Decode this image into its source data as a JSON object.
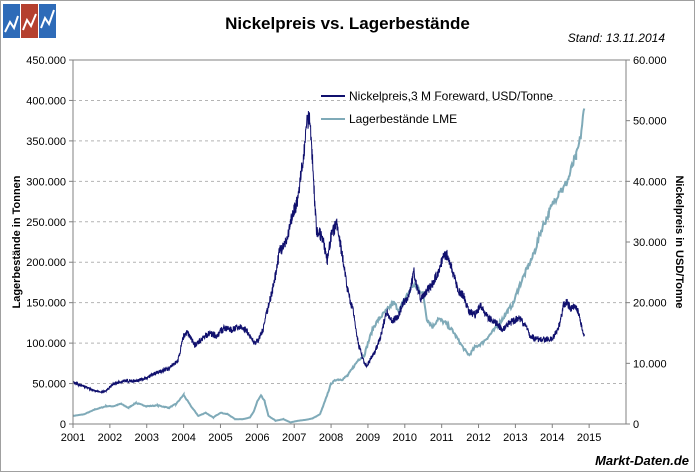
{
  "header": {
    "title": "Nickelpreis vs. Lagerbestände",
    "stand": "Stand: 13.11.2014",
    "footer": "Markt-Daten.de"
  },
  "colors": {
    "nickel": "#10106e",
    "stock": "#7faab8",
    "grid": "#b4b4b4"
  },
  "chart_data": {
    "type": "line",
    "title": "Nickelpreis vs. Lagerbestände",
    "x_ticks": [
      "2001",
      "2002",
      "2003",
      "2004",
      "2005",
      "2006",
      "2007",
      "2008",
      "2009",
      "2010",
      "2011",
      "2012",
      "2013",
      "2014",
      "2015"
    ],
    "xlim": [
      2001,
      2016
    ],
    "y_left": {
      "label": "Lagerbestände in Tonnen",
      "lim": [
        0,
        450000
      ],
      "ticks": [
        "0",
        "50.000",
        "100.000",
        "150.000",
        "200.000",
        "250.000",
        "300.000",
        "350.000",
        "400.000",
        "450.000"
      ]
    },
    "y_right": {
      "label": "Nickelpreis in USD/Tonne",
      "lim": [
        0,
        60000
      ],
      "ticks": [
        "0",
        "10.000",
        "20.000",
        "30.000",
        "40.000",
        "50.000",
        "60.000"
      ]
    },
    "legend": [
      "Nickelpreis,3 M Foreward, USD/Tonne",
      "Lagerbestände LME"
    ],
    "series": [
      {
        "name": "Nickelpreis,3 M Foreward, USD/Tonne",
        "axis": "right",
        "x": [
          2001.0,
          2001.3,
          2001.6,
          2001.85,
          2002.1,
          2002.4,
          2002.7,
          2003.0,
          2003.3,
          2003.6,
          2003.85,
          2004.0,
          2004.1,
          2004.3,
          2004.5,
          2004.7,
          2004.9,
          2005.1,
          2005.3,
          2005.5,
          2005.7,
          2005.9,
          2006.0,
          2006.15,
          2006.3,
          2006.45,
          2006.6,
          2006.8,
          2006.95,
          2007.1,
          2007.25,
          2007.35,
          2007.42,
          2007.5,
          2007.6,
          2007.75,
          2007.9,
          2008.0,
          2008.15,
          2008.3,
          2008.45,
          2008.6,
          2008.75,
          2008.9,
          2008.97,
          2009.05,
          2009.2,
          2009.35,
          2009.5,
          2009.65,
          2009.8,
          2009.95,
          2010.1,
          2010.25,
          2010.35,
          2010.45,
          2010.6,
          2010.75,
          2010.9,
          2011.05,
          2011.15,
          2011.3,
          2011.45,
          2011.6,
          2011.75,
          2011.9,
          2012.05,
          2012.2,
          2012.35,
          2012.5,
          2012.65,
          2012.8,
          2012.95,
          2013.1,
          2013.25,
          2013.4,
          2013.55,
          2013.7,
          2013.85,
          2014.0,
          2014.1,
          2014.2,
          2014.3,
          2014.4,
          2014.5,
          2014.6,
          2014.7,
          2014.8,
          2014.87
        ],
        "values": [
          6800,
          6200,
          5400,
          5300,
          6600,
          7100,
          7100,
          7600,
          8600,
          9100,
          10500,
          14500,
          15200,
          13000,
          14000,
          15000,
          14500,
          15800,
          15500,
          16000,
          15500,
          13500,
          13500,
          15500,
          19500,
          23000,
          28500,
          30000,
          34500,
          37000,
          44000,
          50000,
          51000,
          43000,
          32000,
          31000,
          27000,
          31000,
          33000,
          28000,
          22000,
          18500,
          13000,
          10000,
          9500,
          10500,
          12000,
          14500,
          18500,
          17000,
          17500,
          20000,
          21000,
          25000,
          22000,
          20500,
          22000,
          23000,
          25000,
          27500,
          28000,
          25000,
          22000,
          21000,
          18500,
          18000,
          19500,
          18000,
          17000,
          16500,
          15500,
          16500,
          17000,
          17500,
          16500,
          14500,
          14000,
          14000,
          14000,
          14000,
          15000,
          16500,
          19500,
          20000,
          19000,
          19500,
          18500,
          16000,
          14500
        ]
      },
      {
        "name": "Lagerbestände LME",
        "axis": "left",
        "x": [
          2001.0,
          2001.3,
          2001.6,
          2001.9,
          2002.1,
          2002.3,
          2002.5,
          2002.7,
          2003.0,
          2003.3,
          2003.6,
          2003.8,
          2004.0,
          2004.2,
          2004.4,
          2004.6,
          2004.8,
          2005.0,
          2005.2,
          2005.4,
          2005.6,
          2005.8,
          2005.9,
          2006.0,
          2006.1,
          2006.2,
          2006.3,
          2006.5,
          2006.7,
          2006.9,
          2007.1,
          2007.3,
          2007.5,
          2007.7,
          2007.85,
          2008.0,
          2008.15,
          2008.3,
          2008.45,
          2008.6,
          2008.75,
          2008.9,
          2009.0,
          2009.15,
          2009.3,
          2009.5,
          2009.7,
          2009.85,
          2010.0,
          2010.2,
          2010.35,
          2010.5,
          2010.6,
          2010.75,
          2010.9,
          2011.1,
          2011.3,
          2011.5,
          2011.65,
          2011.75,
          2011.9,
          2012.1,
          2012.3,
          2012.5,
          2012.65,
          2012.8,
          2012.95,
          2013.1,
          2013.3,
          2013.5,
          2013.7,
          2013.9,
          2014.0,
          2014.1,
          2014.2,
          2014.3,
          2014.45,
          2014.55,
          2014.65,
          2014.75,
          2014.87
        ],
        "values": [
          10000,
          12000,
          18000,
          22000,
          22000,
          25000,
          20000,
          26000,
          22000,
          23000,
          20000,
          25000,
          36000,
          22000,
          10000,
          14000,
          8000,
          14000,
          12000,
          6000,
          6000,
          8000,
          15000,
          28000,
          35000,
          28000,
          10000,
          4000,
          6000,
          2000,
          4000,
          5000,
          7000,
          12000,
          30000,
          50000,
          55000,
          55000,
          60000,
          70000,
          80000,
          85000,
          100000,
          120000,
          130000,
          140000,
          150000,
          140000,
          155000,
          170000,
          170000,
          160000,
          130000,
          120000,
          130000,
          125000,
          115000,
          100000,
          90000,
          85000,
          95000,
          100000,
          110000,
          120000,
          130000,
          140000,
          150000,
          170000,
          190000,
          210000,
          240000,
          260000,
          270000,
          280000,
          290000,
          290000,
          305000,
          320000,
          330000,
          350000,
          390000
        ]
      }
    ]
  }
}
